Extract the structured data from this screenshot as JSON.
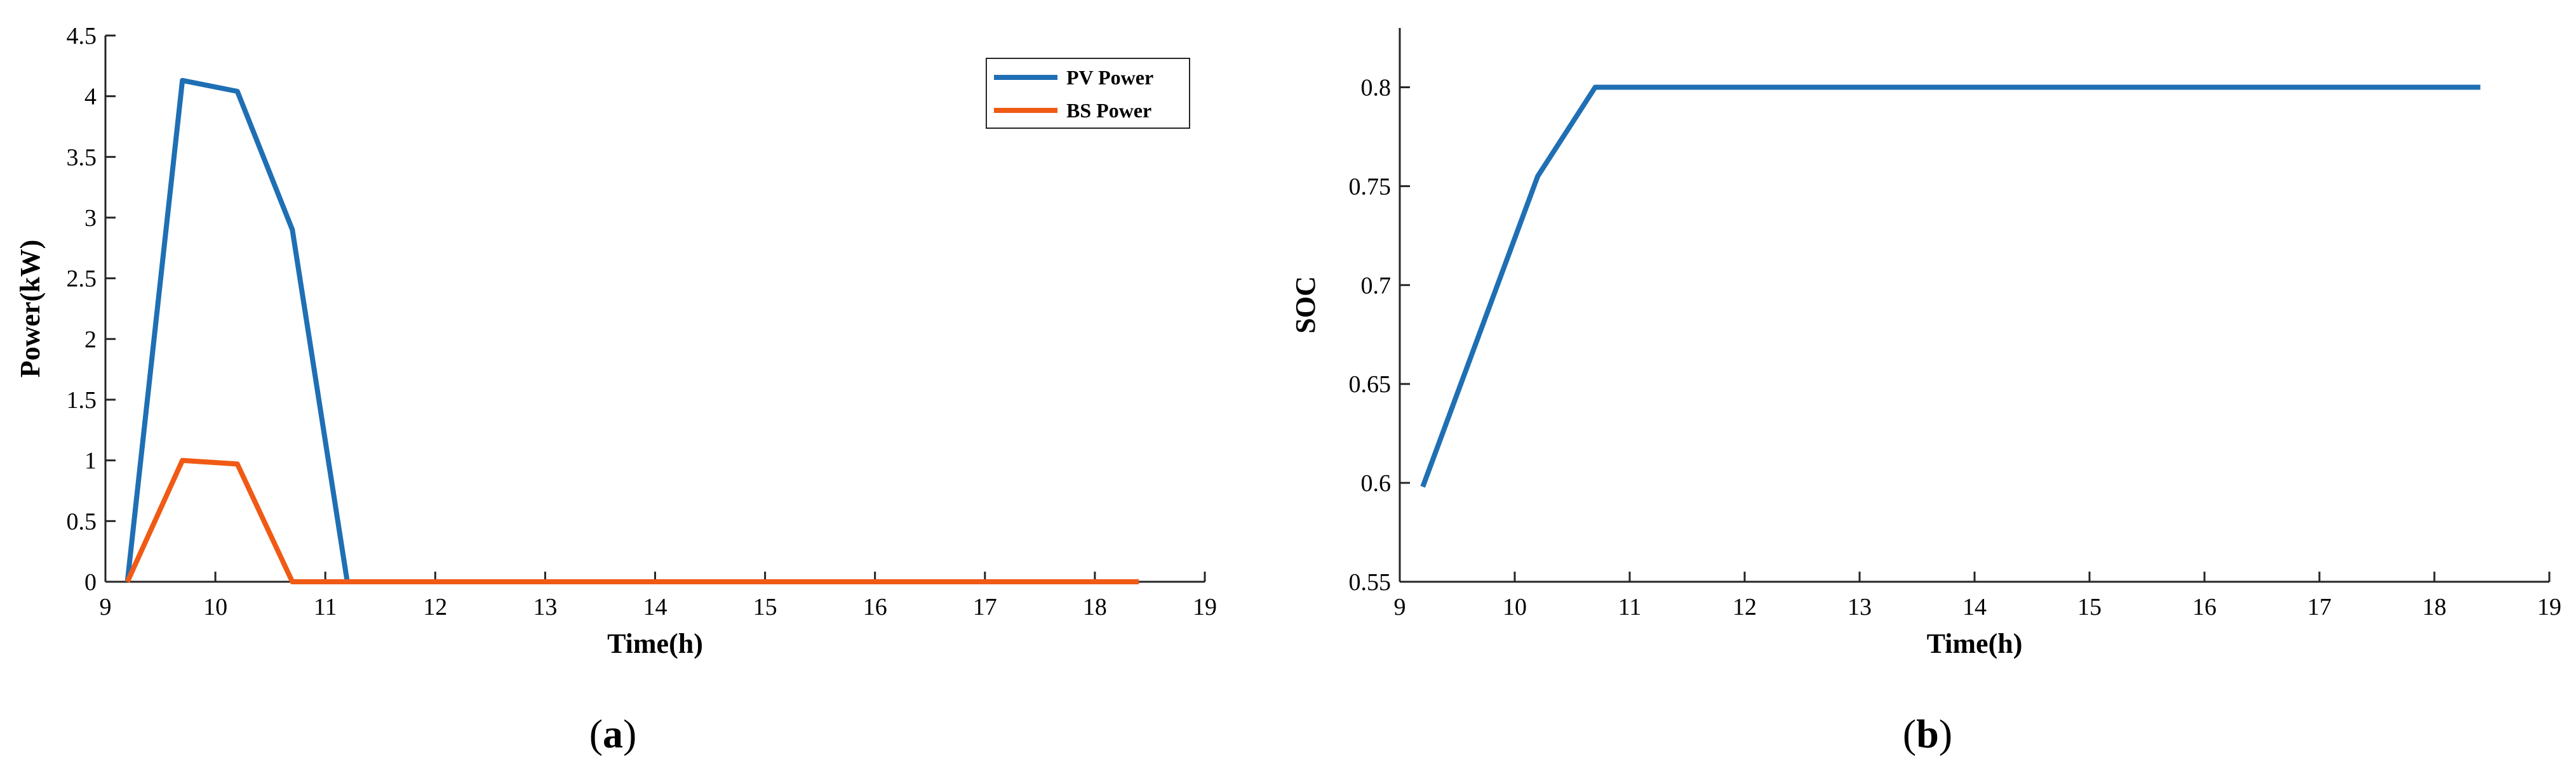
{
  "chart_data": [
    {
      "type": "line",
      "caption": "(a)",
      "caption_letter": "a",
      "xlabel": "Time(h)",
      "ylabel": "Power(kW)",
      "xlim": [
        9,
        19
      ],
      "ylim": [
        0,
        4.5
      ],
      "xticks": [
        "9",
        "10",
        "11",
        "12",
        "13",
        "14",
        "15",
        "16",
        "17",
        "18",
        "19"
      ],
      "yticks": [
        "0",
        "0.5",
        "1",
        "1.5",
        "2",
        "2.5",
        "3",
        "3.5",
        "4",
        "4.5"
      ],
      "grid": false,
      "legend_position": "top-right",
      "series": [
        {
          "name": "PV Power",
          "color": "#1f6fb4",
          "x": [
            9.2,
            9.7,
            10.2,
            10.7,
            11.2,
            18.4
          ],
          "y": [
            0,
            4.13,
            4.04,
            2.9,
            0,
            0
          ]
        },
        {
          "name": "BS Power",
          "color": "#f05a14",
          "x": [
            9.2,
            9.7,
            10.2,
            10.7,
            18.4
          ],
          "y": [
            0,
            1.0,
            0.97,
            0,
            0
          ]
        }
      ]
    },
    {
      "type": "line",
      "caption": "(b)",
      "caption_letter": "b",
      "xlabel": "Time(h)",
      "ylabel": "SOC",
      "xlim": [
        9,
        19
      ],
      "ylim": [
        0.55,
        0.83
      ],
      "xticks": [
        "9",
        "10",
        "11",
        "12",
        "13",
        "14",
        "15",
        "16",
        "17",
        "18",
        "19"
      ],
      "yticks": [
        "0.55",
        "0.6",
        "0.65",
        "0.7",
        "0.75",
        "0.8"
      ],
      "grid": false,
      "series": [
        {
          "color": "#1f6fb4",
          "x": [
            9.2,
            10.2,
            10.7,
            18.4
          ],
          "y": [
            0.598,
            0.755,
            0.8,
            0.8
          ]
        }
      ]
    }
  ]
}
